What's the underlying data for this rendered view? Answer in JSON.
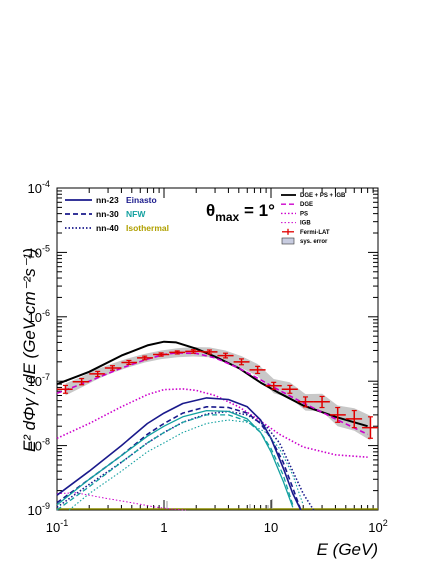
{
  "chart_data": {
    "type": "line",
    "xlabel": "E (GeV)",
    "ylabel": "E² dΦγ / dE (GeV cm⁻²s⁻¹)",
    "xscale": "log",
    "yscale": "log",
    "xlim": [
      0.1,
      100
    ],
    "ylim": [
      1e-09,
      0.0001
    ],
    "x_ticks": [
      {
        "value": 0.1,
        "base": "10",
        "exp": "-1"
      },
      {
        "value": 1,
        "base": "1",
        "exp": ""
      },
      {
        "value": 10,
        "base": "10",
        "exp": ""
      },
      {
        "value": 100,
        "base": "10",
        "exp": "2"
      }
    ],
    "y_ticks": [
      {
        "value": 1e-09,
        "exp": "-9"
      },
      {
        "value": 1e-08,
        "exp": "-8"
      },
      {
        "value": 1e-07,
        "exp": "-7"
      },
      {
        "value": 1e-06,
        "exp": "-6"
      },
      {
        "value": 1e-05,
        "exp": "-5"
      },
      {
        "value": 0.0001,
        "exp": "-4"
      }
    ],
    "annotation": {
      "theta": "θ",
      "sub": "max",
      "eq": " = 1°"
    },
    "legend_left": [
      {
        "model": "nn-23",
        "profile": "Einasto",
        "color": "#1a1a8c",
        "dash": "solid"
      },
      {
        "model": "nn-30",
        "profile": "NFW",
        "color": "#13a0a0",
        "dash": "dash"
      },
      {
        "model": "nn-40",
        "profile": "Isothermal",
        "color": "#b0a000",
        "dash": "dot"
      }
    ],
    "legend_right": [
      "DGE + PS + IGB",
      "DGE",
      "PS",
      "IGB",
      "Fermi-LAT",
      "sys. error"
    ],
    "series": [
      {
        "name": "DGE + PS + IGB",
        "color": "#000000",
        "style": "solid",
        "width": 2,
        "x": [
          0.1,
          0.2,
          0.4,
          0.7,
          1.0,
          1.3,
          2,
          3,
          5,
          8,
          12,
          20,
          40,
          80
        ],
        "y": [
          9e-08,
          1.4e-07,
          2.5e-07,
          3.6e-07,
          4.1e-07,
          4e-07,
          3.2e-07,
          2.4e-07,
          1.6e-07,
          9.5e-08,
          6.5e-08,
          4.2e-08,
          2.8e-08,
          2e-08
        ]
      },
      {
        "name": "DGE",
        "color": "#cc00cc",
        "style": "dash",
        "width": 1.6,
        "x": [
          0.1,
          0.2,
          0.4,
          0.7,
          1.0,
          1.3,
          2,
          3,
          5,
          8,
          12,
          20,
          40,
          80
        ],
        "y": [
          6.5e-08,
          1e-07,
          1.6e-07,
          2.2e-07,
          2.6e-07,
          2.75e-07,
          2.7e-07,
          2.3e-07,
          1.6e-07,
          1.05e-07,
          7.2e-08,
          4.6e-08,
          2.6e-08,
          1.5e-08
        ]
      },
      {
        "name": "PS",
        "color": "#cc00cc",
        "style": "dot",
        "width": 1.6,
        "x": [
          0.1,
          0.2,
          0.4,
          0.7,
          1.0,
          1.5,
          2,
          3,
          5,
          8,
          12,
          20,
          40,
          80
        ],
        "y": [
          1.3e-08,
          2.2e-08,
          4e-08,
          6.2e-08,
          7.4e-08,
          7.6e-08,
          7.2e-08,
          6e-08,
          4e-08,
          2.4e-08,
          1.5e-08,
          9.5e-09,
          7.2e-09,
          6.6e-09
        ]
      },
      {
        "name": "IGB",
        "color": "#cc00cc",
        "style": "dot",
        "width": 1,
        "x": [
          0.1,
          0.15,
          0.2,
          0.3,
          0.5,
          0.8,
          1.2,
          1.6
        ],
        "y": [
          1.8e-09,
          1.85e-09,
          1.7e-09,
          1.5e-09,
          1.3e-09,
          1.12e-09,
          1.03e-09,
          1e-09
        ]
      },
      {
        "name": "nn-23 Einasto",
        "color": "#1a1a8c",
        "style": "solid",
        "width": 1.6,
        "x": [
          0.1,
          0.2,
          0.4,
          0.7,
          1.0,
          1.5,
          2.5,
          4,
          6,
          8,
          10,
          13,
          16,
          19
        ],
        "y": [
          1.7e-09,
          4e-09,
          1e-08,
          2.2e-08,
          3.2e-08,
          4.5e-08,
          5.5e-08,
          5.2e-08,
          4e-08,
          2.5e-08,
          1.3e-08,
          4.5e-09,
          1.8e-09,
          1e-09
        ]
      },
      {
        "name": "nn-30 NFW",
        "color": "#1a1a8c",
        "style": "dash",
        "width": 1.6,
        "x": [
          0.1,
          0.2,
          0.4,
          0.7,
          1.0,
          1.5,
          2.5,
          4,
          6,
          8,
          10,
          13,
          16,
          19
        ],
        "y": [
          1.3e-09,
          3e-09,
          7e-09,
          1.5e-08,
          2.2e-08,
          3.2e-08,
          4e-08,
          3.9e-08,
          3.2e-08,
          2.2e-08,
          1.3e-08,
          5.5e-09,
          2.2e-09,
          1e-09
        ]
      },
      {
        "name": "nn-40 Isothermal",
        "color": "#1a1a8c",
        "style": "dot",
        "width": 1.6,
        "x": [
          0.1,
          0.2,
          0.4,
          0.7,
          1.0,
          1.5,
          2.5,
          4,
          6,
          9,
          12,
          16,
          20,
          25
        ],
        "y": [
          1.1e-09,
          2.5e-09,
          5.5e-09,
          1.1e-08,
          1.6e-08,
          2.3e-08,
          3.1e-08,
          3.4e-08,
          3e-08,
          2e-08,
          1.1e-08,
          4e-09,
          1.8e-09,
          1e-09
        ]
      },
      {
        "name": "nn-23 Einasto (teal)",
        "color": "#13a0a0",
        "style": "solid",
        "width": 1.3,
        "x": [
          0.1,
          0.2,
          0.4,
          0.7,
          1.0,
          1.5,
          2.5,
          4,
          6,
          8,
          10,
          13,
          16
        ],
        "y": [
          1.2e-09,
          3e-09,
          7e-09,
          1.4e-08,
          2e-08,
          2.8e-08,
          3.5e-08,
          3.4e-08,
          2.6e-08,
          1.6e-08,
          8e-09,
          2.8e-09,
          1.1e-09
        ]
      },
      {
        "name": "nn-30 NFW (teal)",
        "color": "#13a0a0",
        "style": "dash",
        "width": 1.3,
        "x": [
          0.1,
          0.2,
          0.4,
          0.7,
          1.0,
          1.5,
          2.5,
          4,
          6,
          8,
          10,
          13,
          16
        ],
        "y": [
          1e-09,
          2.3e-09,
          5.5e-09,
          1.1e-08,
          1.6e-08,
          2.3e-08,
          3e-08,
          3e-08,
          2.4e-08,
          1.6e-08,
          9e-09,
          3.5e-09,
          1.2e-09
        ]
      },
      {
        "name": "nn-40 Isothermal (teal)",
        "color": "#13a0a0",
        "style": "dot",
        "width": 1.1,
        "x": [
          0.13,
          0.2,
          0.4,
          0.7,
          1.0,
          1.5,
          2.5,
          4,
          6,
          9,
          12,
          16,
          20
        ],
        "y": [
          1e-09,
          1.8e-09,
          4e-09,
          8e-09,
          1.1e-08,
          1.6e-08,
          2.2e-08,
          2.5e-08,
          2.3e-08,
          1.6e-08,
          9e-09,
          3.5e-09,
          1.2e-09
        ]
      }
    ],
    "fermi_points": [
      {
        "x": 0.12,
        "y": 7.5e-08,
        "xlo": 0.1,
        "xhi": 0.14,
        "ylo": 6.5e-08,
        "yhi": 8.6e-08
      },
      {
        "x": 0.17,
        "y": 9.8e-08,
        "xlo": 0.14,
        "xhi": 0.2,
        "ylo": 8.8e-08,
        "yhi": 1.1e-07
      },
      {
        "x": 0.24,
        "y": 1.3e-07,
        "xlo": 0.2,
        "xhi": 0.28,
        "ylo": 1.18e-07,
        "yhi": 1.42e-07
      },
      {
        "x": 0.33,
        "y": 1.6e-07,
        "xlo": 0.28,
        "xhi": 0.4,
        "ylo": 1.48e-07,
        "yhi": 1.74e-07
      },
      {
        "x": 0.47,
        "y": 1.95e-07,
        "xlo": 0.4,
        "xhi": 0.56,
        "ylo": 1.82e-07,
        "yhi": 2.1e-07
      },
      {
        "x": 0.66,
        "y": 2.3e-07,
        "xlo": 0.56,
        "xhi": 0.79,
        "ylo": 2.15e-07,
        "yhi": 2.45e-07
      },
      {
        "x": 0.94,
        "y": 2.6e-07,
        "xlo": 0.79,
        "xhi": 1.12,
        "ylo": 2.45e-07,
        "yhi": 2.75e-07
      },
      {
        "x": 1.33,
        "y": 2.8e-07,
        "xlo": 1.12,
        "xhi": 1.58,
        "ylo": 2.65e-07,
        "yhi": 2.95e-07
      },
      {
        "x": 1.88,
        "y": 2.9e-07,
        "xlo": 1.58,
        "xhi": 2.24,
        "ylo": 2.72e-07,
        "yhi": 3.08e-07
      },
      {
        "x": 2.66,
        "y": 2.85e-07,
        "xlo": 2.24,
        "xhi": 3.16,
        "ylo": 2.65e-07,
        "yhi": 3.05e-07
      },
      {
        "x": 3.76,
        "y": 2.5e-07,
        "xlo": 3.16,
        "xhi": 4.47,
        "ylo": 2.3e-07,
        "yhi": 2.72e-07
      },
      {
        "x": 5.3,
        "y": 2e-07,
        "xlo": 4.47,
        "xhi": 6.3,
        "ylo": 1.8e-07,
        "yhi": 2.22e-07
      },
      {
        "x": 7.5,
        "y": 1.5e-07,
        "xlo": 6.3,
        "xhi": 8.9,
        "ylo": 1.32e-07,
        "yhi": 1.7e-07
      },
      {
        "x": 10.6,
        "y": 8.5e-08,
        "xlo": 8.9,
        "xhi": 12.6,
        "ylo": 7.5e-08,
        "yhi": 9.6e-08
      },
      {
        "x": 15,
        "y": 7.5e-08,
        "xlo": 12.6,
        "xhi": 17.8,
        "ylo": 6.5e-08,
        "yhi": 8.6e-08
      },
      {
        "x": 21,
        "y": 4.8e-08,
        "xlo": 17.8,
        "xhi": 25,
        "ylo": 4e-08,
        "yhi": 5.7e-08
      },
      {
        "x": 30,
        "y": 4.8e-08,
        "xlo": 25,
        "xhi": 35.5,
        "ylo": 3.9e-08,
        "yhi": 5.8e-08
      },
      {
        "x": 42,
        "y": 3e-08,
        "xlo": 35.5,
        "xhi": 50,
        "ylo": 2.3e-08,
        "yhi": 3.9e-08
      },
      {
        "x": 60,
        "y": 2.6e-08,
        "xlo": 50,
        "xhi": 71,
        "ylo": 1.9e-08,
        "yhi": 3.5e-08
      },
      {
        "x": 85,
        "y": 1.9e-08,
        "xlo": 71,
        "xhi": 100,
        "ylo": 1.3e-08,
        "yhi": 2.8e-08
      }
    ],
    "sys_error_band": {
      "x": [
        0.12,
        0.17,
        0.24,
        0.33,
        0.47,
        0.66,
        0.94,
        1.33,
        1.88,
        2.66,
        3.76,
        5.3,
        7.5,
        10.6,
        15,
        21,
        30,
        42,
        60,
        85
      ],
      "lo": [
        6e-08,
        8e-08,
        1.08e-07,
        1.35e-07,
        1.65e-07,
        1.95e-07,
        2.2e-07,
        2.35e-07,
        2.42e-07,
        2.35e-07,
        2.05e-07,
        1.6e-07,
        1.2e-07,
        6.5e-08,
        5.5e-08,
        3.5e-08,
        3.4e-08,
        2e-08,
        1.7e-08,
        1.2e-08
      ],
      "hi": [
        9.2e-08,
        1.18e-07,
        1.55e-07,
        1.88e-07,
        2.28e-07,
        2.65e-07,
        3e-07,
        3.25e-07,
        3.4e-07,
        3.35e-07,
        3e-07,
        2.45e-07,
        1.85e-07,
        1.08e-07,
        9.6e-08,
        6.3e-08,
        6.4e-08,
        4.2e-08,
        3.8e-08,
        2.9e-08
      ]
    },
    "colors": {
      "fermi": "#e00000",
      "band": "#c8c8c8",
      "band_legend": "#c8cce0",
      "gold": "#8c8c00"
    }
  }
}
